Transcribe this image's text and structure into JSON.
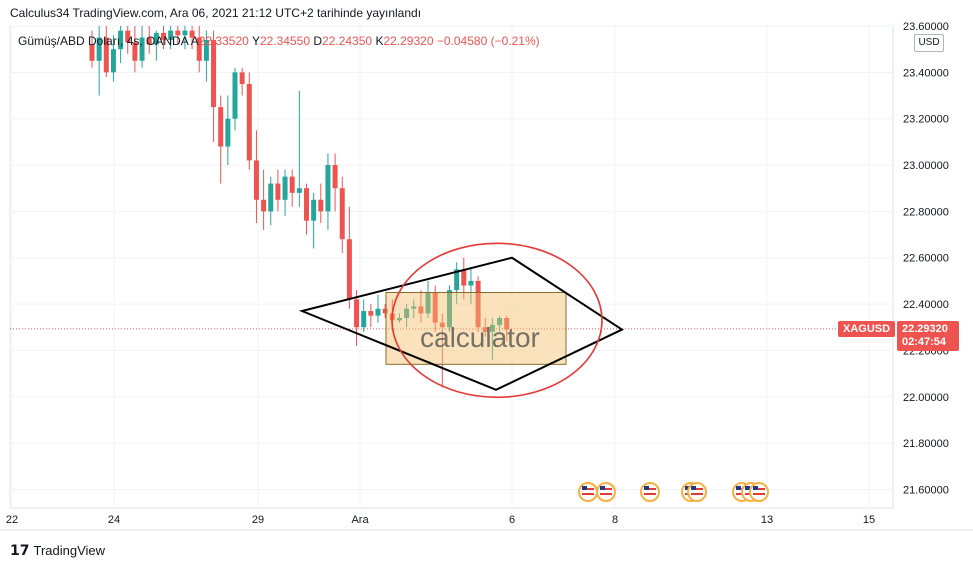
{
  "header": {
    "published": "Calculus34 TradingView.com, Ara 06, 2021 21:12 UTC+2 tarihinde yayınlandı",
    "symbol_line": "Gümüş/ABD Doları, 4s, OANDA",
    "o_label": "A",
    "o_value": "22.33520",
    "h_label": "Y",
    "h_value": "22.34550",
    "l_label": "D",
    "l_value": "22.24350",
    "c_label": "K",
    "c_value": "22.29320",
    "change": "−0.04580 (−0.21%)"
  },
  "currency": "USD",
  "last_price": {
    "symbol": "XAGUSD",
    "price": "22.29320",
    "countdown": "02:47:54"
  },
  "watermark_text": "calculator",
  "footer": {
    "brand": "TradingView"
  },
  "colors": {
    "up": "#26a69a",
    "down": "#ef5350",
    "grid": "#f0f3fa",
    "ellipse": "#e53935",
    "box": "#f5c26b"
  },
  "chart_data": {
    "type": "candlestick",
    "ylim": [
      21.52,
      23.6
    ],
    "y_ticks": [
      "23.60000",
      "23.40000",
      "23.20000",
      "23.00000",
      "22.80000",
      "22.60000",
      "22.40000",
      "22.20000",
      "22.00000",
      "21.80000",
      "21.60000"
    ],
    "x_ticks": [
      "22",
      "24",
      "29",
      "Ara",
      "6",
      "8",
      "13",
      "15"
    ],
    "candles": [
      [
        23.52,
        23.58,
        23.42,
        23.45
      ],
      [
        23.45,
        23.6,
        23.3,
        23.55
      ],
      [
        23.55,
        23.6,
        23.38,
        23.4
      ],
      [
        23.4,
        23.56,
        23.36,
        23.5
      ],
      [
        23.5,
        23.6,
        23.44,
        23.58
      ],
      [
        23.58,
        23.6,
        23.48,
        23.53
      ],
      [
        23.53,
        23.6,
        23.4,
        23.45
      ],
      [
        23.45,
        23.6,
        23.42,
        23.55
      ],
      [
        23.55,
        23.6,
        23.48,
        23.52
      ],
      [
        23.52,
        23.58,
        23.45,
        23.57
      ],
      [
        23.57,
        23.6,
        23.5,
        23.54
      ],
      [
        23.54,
        23.6,
        23.5,
        23.58
      ],
      [
        23.58,
        23.6,
        23.52,
        23.56
      ],
      [
        23.56,
        23.6,
        23.5,
        23.58
      ],
      [
        23.58,
        23.6,
        23.5,
        23.55
      ],
      [
        23.55,
        23.6,
        23.4,
        23.45
      ],
      [
        23.45,
        23.58,
        23.36,
        23.54
      ],
      [
        23.54,
        23.58,
        23.1,
        23.25
      ],
      [
        23.25,
        23.3,
        22.92,
        23.08
      ],
      [
        23.08,
        23.3,
        23.0,
        23.2
      ],
      [
        23.2,
        23.42,
        23.15,
        23.4
      ],
      [
        23.4,
        23.42,
        23.3,
        23.35
      ],
      [
        23.35,
        23.4,
        22.98,
        23.02
      ],
      [
        23.02,
        23.15,
        22.75,
        22.85
      ],
      [
        22.85,
        22.98,
        22.72,
        22.8
      ],
      [
        22.8,
        22.95,
        22.74,
        22.92
      ],
      [
        22.92,
        22.98,
        22.8,
        22.85
      ],
      [
        22.85,
        22.98,
        22.78,
        22.95
      ],
      [
        22.95,
        22.98,
        22.82,
        22.88
      ],
      [
        22.88,
        23.32,
        22.82,
        22.9
      ],
      [
        22.9,
        22.92,
        22.7,
        22.76
      ],
      [
        22.76,
        22.88,
        22.64,
        22.85
      ],
      [
        22.85,
        22.92,
        22.75,
        22.8
      ],
      [
        22.8,
        23.05,
        22.72,
        23.0
      ],
      [
        23.0,
        23.05,
        22.8,
        22.9
      ],
      [
        22.9,
        22.95,
        22.62,
        22.68
      ],
      [
        22.68,
        22.82,
        22.38,
        22.42
      ],
      [
        22.42,
        22.46,
        22.22,
        22.3
      ],
      [
        22.3,
        22.42,
        22.28,
        22.37
      ],
      [
        22.37,
        22.4,
        22.3,
        22.35
      ],
      [
        22.35,
        22.44,
        22.32,
        22.38
      ],
      [
        22.38,
        22.4,
        22.34,
        22.36
      ],
      [
        22.36,
        22.42,
        22.3,
        22.33
      ],
      [
        22.33,
        22.36,
        22.32,
        22.34
      ],
      [
        22.34,
        22.4,
        22.3,
        22.38
      ],
      [
        22.38,
        22.42,
        22.34,
        22.39
      ],
      [
        22.39,
        22.46,
        22.32,
        22.36
      ],
      [
        22.36,
        22.5,
        22.34,
        22.45
      ],
      [
        22.45,
        22.48,
        22.28,
        22.32
      ],
      [
        22.32,
        22.36,
        22.04,
        22.3
      ],
      [
        22.3,
        22.48,
        22.28,
        22.46
      ],
      [
        22.46,
        22.58,
        22.4,
        22.55
      ],
      [
        22.55,
        22.6,
        22.42,
        22.48
      ],
      [
        22.48,
        22.56,
        22.4,
        22.5
      ],
      [
        22.5,
        22.52,
        22.28,
        22.3
      ],
      [
        22.3,
        22.34,
        22.26,
        22.28
      ],
      [
        22.28,
        22.34,
        22.16,
        22.31
      ],
      [
        22.31,
        22.35,
        22.28,
        22.34
      ],
      [
        22.34,
        22.35,
        22.24,
        22.29
      ]
    ]
  }
}
